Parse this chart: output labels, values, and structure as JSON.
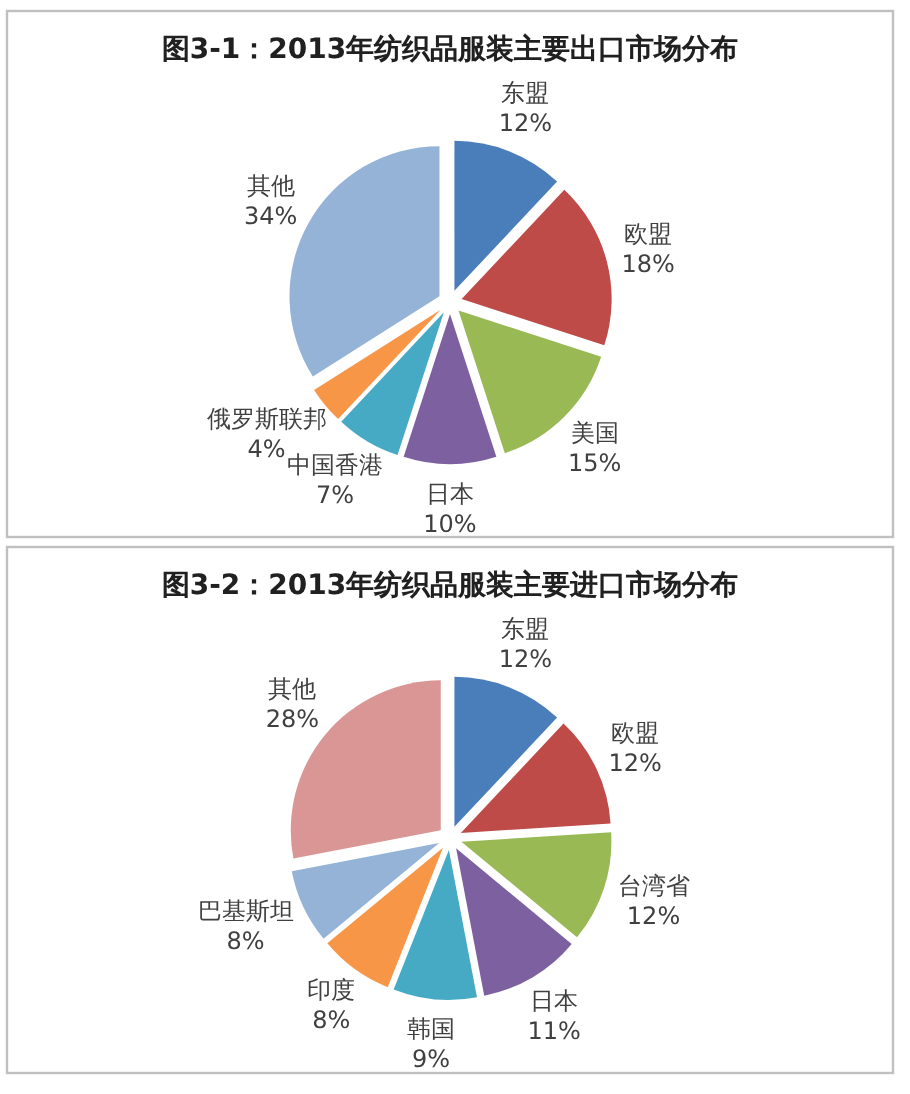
{
  "chart_data": [
    {
      "type": "pie",
      "title": "图3-1：2013年纺织品服装主要出口市场分布",
      "categories": [
        "东盟",
        "欧盟",
        "美国",
        "日本",
        "中国香港",
        "俄罗斯联邦",
        "其他"
      ],
      "values": [
        12,
        18,
        15,
        10,
        7,
        4,
        34
      ],
      "value_labels": [
        "12%",
        "18%",
        "15%",
        "10%",
        "7%",
        "4%",
        "34%"
      ],
      "colors": [
        "#4a7ebb",
        "#be4b48",
        "#98b954",
        "#7d60a0",
        "#46aac5",
        "#f79646",
        "#95b3d7"
      ]
    },
    {
      "type": "pie",
      "title": "图3-2：2013年纺织品服装主要进口市场分布",
      "categories": [
        "东盟",
        "欧盟",
        "台湾省",
        "日本",
        "韩国",
        "印度",
        "巴基斯坦",
        "其他"
      ],
      "values": [
        12,
        12,
        12,
        11,
        9,
        8,
        8,
        28
      ],
      "value_labels": [
        "12%",
        "12%",
        "12%",
        "11%",
        "9%",
        "8%",
        "8%",
        "28%"
      ],
      "colors": [
        "#4a7ebb",
        "#be4b48",
        "#98b954",
        "#7d60a0",
        "#46aac5",
        "#f79646",
        "#95b3d7",
        "#d99694"
      ]
    }
  ]
}
